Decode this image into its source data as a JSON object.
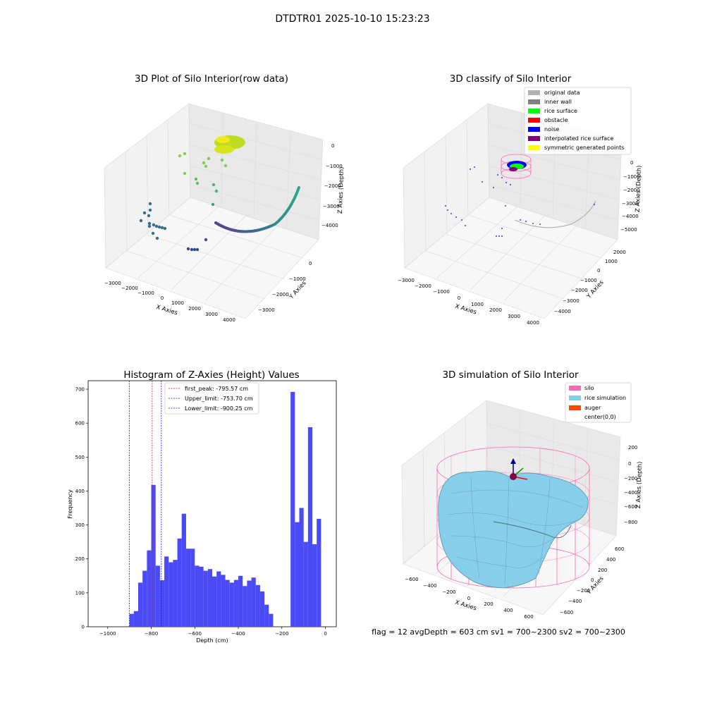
{
  "figure_title": "DTDTR01 2025-10-10 15:23:23",
  "footer_text": "flag = 12   avgDepth = 603 cm   sv1 = 700~2300  sv2 = 700~2300",
  "colors": {
    "hist_bar": "#4a4af6",
    "first_peak_line": "#e31a1c",
    "limit_line": "#1414e6",
    "silo": "#ff69b4",
    "rice_simulation": "#87ceeb",
    "auger": "#ff4500",
    "original_data": "#b3b3b3",
    "inner_wall": "#808080",
    "rice_surface": "#00ff00",
    "obstacle": "#ff0000",
    "noise": "#0000ff",
    "interpolated_rice_surface": "#800080",
    "symmetric_generated_points": "#ffff00"
  },
  "chart_data": [
    {
      "type": "scatter",
      "title": "3D Plot of Silo Interior(row data)",
      "xlabel": "X Axies",
      "ylabel": "Y Axies",
      "zlabel": "Z Axies (Depth)",
      "x_ticks": [
        "−3000",
        "−2000",
        "−1000",
        "0",
        "1000",
        "2000",
        "3000",
        "4000"
      ],
      "y_ticks": [
        "0",
        "−1000",
        "−2000",
        "−3000"
      ],
      "z_ticks": [
        "0",
        "−1000",
        "−2000",
        "−3000",
        "−4000"
      ],
      "grid": true
    },
    {
      "type": "scatter",
      "title": "3D classify of Silo Interior",
      "xlabel": "X Axies",
      "ylabel": "Y Axies",
      "zlabel": "Z Axies (Depth)",
      "x_ticks": [
        "−3000",
        "−2000",
        "−1000",
        "0",
        "1000",
        "2000",
        "3000",
        "4000"
      ],
      "y_ticks": [
        "2000",
        "1000",
        "0",
        "−1000",
        "−2000",
        "−3000",
        "−4000"
      ],
      "z_ticks": [
        "0",
        "−1000",
        "−2000",
        "−3000",
        "−4000",
        "−5000"
      ],
      "legend_position": "top-right",
      "legend": [
        "original data",
        "inner wall",
        "rice surface",
        "obstacle",
        "noise",
        "interpolated rice surface",
        "symmetric generated points"
      ],
      "grid": true
    },
    {
      "type": "bar",
      "title": "Histogram of Z-Axies (Height) Values",
      "xlabel": "Depth (cm)",
      "ylabel": "Frequency",
      "xlim": [
        -1090,
        50
      ],
      "ylim": [
        0,
        725
      ],
      "x_ticks": [
        -1000,
        -800,
        -600,
        -400,
        -200,
        0
      ],
      "y_ticks": [
        0,
        100,
        200,
        300,
        400,
        500,
        600,
        700
      ],
      "bin_width": 20,
      "bins": [
        [
          -900,
          38
        ],
        [
          -880,
          46
        ],
        [
          -860,
          130
        ],
        [
          -840,
          165
        ],
        [
          -820,
          225
        ],
        [
          -800,
          418
        ],
        [
          -780,
          180
        ],
        [
          -760,
          137
        ],
        [
          -740,
          207
        ],
        [
          -720,
          190
        ],
        [
          -700,
          197
        ],
        [
          -680,
          260
        ],
        [
          -660,
          333
        ],
        [
          -640,
          230
        ],
        [
          -620,
          230
        ],
        [
          -600,
          180
        ],
        [
          -580,
          177
        ],
        [
          -560,
          165
        ],
        [
          -540,
          170
        ],
        [
          -520,
          148
        ],
        [
          -500,
          163
        ],
        [
          -480,
          153
        ],
        [
          -460,
          138
        ],
        [
          -440,
          130
        ],
        [
          -420,
          138
        ],
        [
          -400,
          150
        ],
        [
          -380,
          120
        ],
        [
          -360,
          136
        ],
        [
          -340,
          145
        ],
        [
          -320,
          123
        ],
        [
          -300,
          104
        ],
        [
          -280,
          65
        ],
        [
          -260,
          38
        ],
        [
          -240,
          0
        ],
        [
          -220,
          0
        ],
        [
          -200,
          0
        ],
        [
          -180,
          0
        ],
        [
          -160,
          692
        ],
        [
          -140,
          308
        ],
        [
          -120,
          350
        ],
        [
          -100,
          250
        ],
        [
          -80,
          588
        ],
        [
          -60,
          243
        ],
        [
          -40,
          318
        ]
      ],
      "vlines": [
        {
          "label": "first_peak: -795.57 cm",
          "x": -795.57,
          "color": "red"
        },
        {
          "label": "Upper_limit: -753.70 cm",
          "x": -753.7,
          "color": "blue"
        },
        {
          "label": "Lower_limit: -900.25 cm",
          "x": -900.25,
          "color": "blue"
        }
      ],
      "legend_position": "top-left"
    },
    {
      "type": "surface",
      "title": "3D simulation of Silo Interior",
      "xlabel": "X Axies",
      "ylabel": "Y Axies",
      "zlabel": "Z Axies (Depth)",
      "x_ticks": [
        "−600",
        "−400",
        "−200",
        "0",
        "200",
        "400",
        "600"
      ],
      "y_ticks": [
        "600",
        "400",
        "200",
        "0",
        "−200",
        "−400",
        "−600"
      ],
      "z_ticks": [
        "200",
        "0",
        "−200",
        "−400",
        "−600",
        "−800"
      ],
      "legend_position": "top-right",
      "legend": [
        "silo",
        "rice simulation",
        "auger",
        "center(0,0)"
      ],
      "grid": true
    }
  ]
}
